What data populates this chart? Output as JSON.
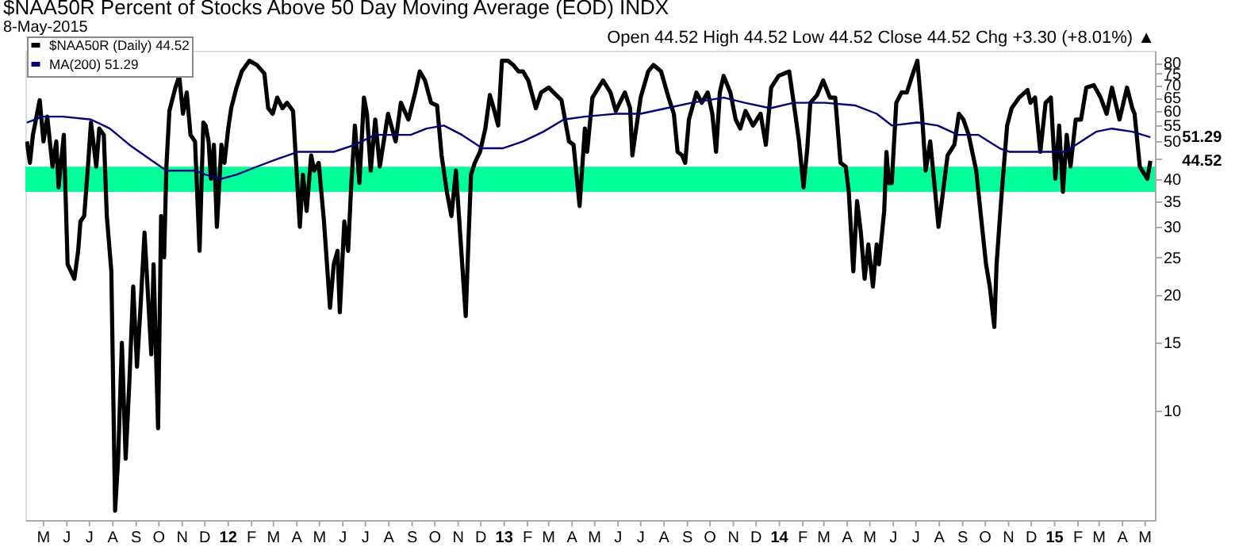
{
  "chart_data": {
    "type": "line",
    "title": "$NAA50R Percent of Stocks Above 50 Day Moving Average (EOD) INDX",
    "subtitle": "8-May-2015",
    "annotations": [
      "Open 44.52 High 44.52 Low 44.52 Close 44.52 Chg +3.30 (+8.01%) ▲",
      {
        "text": "51.29",
        "x": "2015-05-08",
        "y": 51.29
      },
      {
        "text": "44.52",
        "x": "2015-05-08",
        "y": 44.52
      }
    ],
    "log": true,
    "grid": false,
    "legend": "top left",
    "marker": "none",
    "line_style": "solid",
    "xlim": [
      "2011-04-07",
      "2015-05-14"
    ],
    "ylim": [
      5.2,
      86
    ],
    "yticks": [
      10,
      15,
      20,
      25,
      30,
      35,
      40,
      {
        "value": 45,
        "label": null
      },
      50,
      55,
      60,
      65,
      70,
      75,
      80
    ],
    "xticks": [
      {
        "value": "2011-05-01",
        "label": "M"
      },
      {
        "value": "2011-06-01",
        "label": "J"
      },
      {
        "value": "2011-07-01",
        "label": "J"
      },
      {
        "value": "2011-08-01",
        "label": "A"
      },
      {
        "value": "2011-09-01",
        "label": "S"
      },
      {
        "value": "2011-10-01",
        "label": "O"
      },
      {
        "value": "2011-11-01",
        "label": "N"
      },
      {
        "value": "2011-12-01",
        "label": "D"
      },
      {
        "value": "2012-01-01",
        "label": "12"
      },
      {
        "value": "2012-02-01",
        "label": "F"
      },
      {
        "value": "2012-03-01",
        "label": "M"
      },
      {
        "value": "2012-04-01",
        "label": "A"
      },
      {
        "value": "2012-05-01",
        "label": "M"
      },
      {
        "value": "2012-06-01",
        "label": "J"
      },
      {
        "value": "2012-07-01",
        "label": "J"
      },
      {
        "value": "2012-08-01",
        "label": "A"
      },
      {
        "value": "2012-09-01",
        "label": "S"
      },
      {
        "value": "2012-10-01",
        "label": "O"
      },
      {
        "value": "2012-11-01",
        "label": "N"
      },
      {
        "value": "2012-12-01",
        "label": "D"
      },
      {
        "value": "2013-01-01",
        "label": "13"
      },
      {
        "value": "2013-02-01",
        "label": "F"
      },
      {
        "value": "2013-03-01",
        "label": "M"
      },
      {
        "value": "2013-04-01",
        "label": "A"
      },
      {
        "value": "2013-05-01",
        "label": "M"
      },
      {
        "value": "2013-06-01",
        "label": "J"
      },
      {
        "value": "2013-07-01",
        "label": "J"
      },
      {
        "value": "2013-08-01",
        "label": "A"
      },
      {
        "value": "2013-09-01",
        "label": "S"
      },
      {
        "value": "2013-10-01",
        "label": "O"
      },
      {
        "value": "2013-11-01",
        "label": "N"
      },
      {
        "value": "2013-12-01",
        "label": "D"
      },
      {
        "value": "2014-01-01",
        "label": "14"
      },
      {
        "value": "2014-02-01",
        "label": "F"
      },
      {
        "value": "2014-03-01",
        "label": "M"
      },
      {
        "value": "2014-04-01",
        "label": "A"
      },
      {
        "value": "2014-05-01",
        "label": "M"
      },
      {
        "value": "2014-06-01",
        "label": "J"
      },
      {
        "value": "2014-07-01",
        "label": "J"
      },
      {
        "value": "2014-08-01",
        "label": "A"
      },
      {
        "value": "2014-09-01",
        "label": "S"
      },
      {
        "value": "2014-10-01",
        "label": "O"
      },
      {
        "value": "2014-11-01",
        "label": "N"
      },
      {
        "value": "2014-12-01",
        "label": "D"
      },
      {
        "value": "2015-01-01",
        "label": "15"
      },
      {
        "value": "2015-02-01",
        "label": "F"
      },
      {
        "value": "2015-03-01",
        "label": "M"
      },
      {
        "value": "2015-04-01",
        "label": "A"
      },
      {
        "value": "2015-05-01",
        "label": "M"
      }
    ],
    "bands": [
      {
        "axis": "y",
        "from": 37,
        "to": 43,
        "color": "#00ff99"
      }
    ],
    "series": [
      {
        "name": "$NAA50R (Daily) 44.52",
        "color": "#000000",
        "x": [
          "2011-04-09",
          "2011-04-13",
          "2011-04-17",
          "2011-04-26",
          "2011-05-01",
          "2011-05-06",
          "2011-05-13",
          "2011-05-18",
          "2011-05-21",
          "2011-05-28",
          "2011-06-02",
          "2011-06-11",
          "2011-06-16",
          "2011-06-19",
          "2011-06-24",
          "2011-06-29",
          "2011-07-03",
          "2011-07-10",
          "2011-07-14",
          "2011-07-20",
          "2011-07-24",
          "2011-07-30",
          "2011-08-04",
          "2011-08-08",
          "2011-08-13",
          "2011-08-18",
          "2011-08-23",
          "2011-08-28",
          "2011-09-02",
          "2011-09-07",
          "2011-09-12",
          "2011-09-21",
          "2011-09-24",
          "2011-09-30",
          "2011-10-04",
          "2011-10-08",
          "2011-10-11",
          "2011-10-15",
          "2011-10-23",
          "2011-10-28",
          "2011-11-02",
          "2011-11-07",
          "2011-11-12",
          "2011-11-18",
          "2011-11-24",
          "2011-11-29",
          "2011-12-02",
          "2011-12-06",
          "2011-12-09",
          "2011-12-13",
          "2011-12-17",
          "2011-12-23",
          "2011-12-27",
          "2012-01-01",
          "2012-01-05",
          "2012-01-12",
          "2012-01-19",
          "2012-01-29",
          "2012-02-08",
          "2012-02-18",
          "2012-02-23",
          "2012-02-29",
          "2012-03-06",
          "2012-03-13",
          "2012-03-19",
          "2012-03-27",
          "2012-04-05",
          "2012-04-09",
          "2012-04-14",
          "2012-04-20",
          "2012-04-24",
          "2012-04-30",
          "2012-05-07",
          "2012-05-15",
          "2012-05-20",
          "2012-05-25",
          "2012-05-28",
          "2012-06-03",
          "2012-06-08",
          "2012-06-12",
          "2012-06-17",
          "2012-06-23",
          "2012-06-29",
          "2012-07-03",
          "2012-07-08",
          "2012-07-14",
          "2012-07-20",
          "2012-07-31",
          "2012-08-10",
          "2012-08-17",
          "2012-08-27",
          "2012-09-05",
          "2012-09-11",
          "2012-09-18",
          "2012-09-26",
          "2012-10-04",
          "2012-10-10",
          "2012-10-17",
          "2012-10-23",
          "2012-10-29",
          "2012-11-04",
          "2012-11-11",
          "2012-11-15",
          "2012-11-18",
          "2012-11-23",
          "2012-11-30",
          "2012-12-07",
          "2012-12-13",
          "2012-12-18",
          "2012-12-24",
          "2012-12-29",
          "2013-01-06",
          "2013-01-13",
          "2013-01-20",
          "2013-01-26",
          "2013-02-02",
          "2013-02-12",
          "2013-02-19",
          "2013-03-01",
          "2013-03-11",
          "2013-03-18",
          "2013-03-28",
          "2013-04-03",
          "2013-04-11",
          "2013-04-18",
          "2013-04-21",
          "2013-04-28",
          "2013-05-12",
          "2013-05-22",
          "2013-05-29",
          "2013-06-10",
          "2013-06-17",
          "2013-06-20",
          "2013-06-25",
          "2013-07-01",
          "2013-07-11",
          "2013-07-18",
          "2013-07-28",
          "2013-08-07",
          "2013-08-14",
          "2013-08-19",
          "2013-08-25",
          "2013-08-29",
          "2013-09-03",
          "2013-09-13",
          "2013-09-20",
          "2013-09-28",
          "2013-10-04",
          "2013-10-09",
          "2013-10-14",
          "2013-10-19",
          "2013-10-28",
          "2013-11-04",
          "2013-11-10",
          "2013-11-17",
          "2013-11-27",
          "2013-12-07",
          "2013-12-14",
          "2013-12-21",
          "2013-12-31",
          "2014-01-14",
          "2014-01-22",
          "2014-01-27",
          "2014-02-02",
          "2014-02-07",
          "2014-02-11",
          "2014-02-20",
          "2014-02-28",
          "2014-03-09",
          "2014-03-16",
          "2014-03-23",
          "2014-03-30",
          "2014-04-03",
          "2014-04-09",
          "2014-04-14",
          "2014-04-19",
          "2014-04-24",
          "2014-04-29",
          "2014-05-05",
          "2014-05-10",
          "2014-05-13",
          "2014-05-20",
          "2014-05-23",
          "2014-05-26",
          "2014-05-30",
          "2014-06-05",
          "2014-06-12",
          "2014-06-19",
          "2014-06-26",
          "2014-07-03",
          "2014-07-09",
          "2014-07-14",
          "2014-07-20",
          "2014-07-26",
          "2014-07-31",
          "2014-08-06",
          "2014-08-12",
          "2014-08-21",
          "2014-08-27",
          "2014-09-02",
          "2014-09-09",
          "2014-09-19",
          "2014-09-26",
          "2014-10-02",
          "2014-10-07",
          "2014-10-13",
          "2014-10-16",
          "2014-10-22",
          "2014-10-30",
          "2014-11-05",
          "2014-11-15",
          "2014-11-26",
          "2014-11-30",
          "2014-12-06",
          "2014-12-13",
          "2014-12-20",
          "2014-12-27",
          "2015-01-02",
          "2015-01-07",
          "2015-01-12",
          "2015-01-17",
          "2015-01-22",
          "2015-01-29",
          "2015-02-05",
          "2015-02-12",
          "2015-02-22",
          "2015-03-03",
          "2015-03-11",
          "2015-03-18",
          "2015-03-28",
          "2015-04-07",
          "2015-04-14",
          "2015-04-17",
          "2015-04-24",
          "2015-05-04",
          "2015-05-08"
        ],
        "values": [
          50,
          44,
          52,
          64,
          50,
          58,
          43,
          50,
          38,
          52,
          24,
          22,
          26,
          31,
          32,
          43,
          56,
          43,
          54,
          52,
          32,
          23,
          5.5,
          7.5,
          15,
          7.5,
          12,
          21,
          13,
          19,
          29,
          14,
          24,
          9,
          32,
          25,
          43,
          60,
          69,
          74,
          59,
          67,
          52,
          50,
          26,
          56,
          55,
          50,
          40,
          49,
          30,
          49,
          44,
          54,
          61,
          69,
          76,
          81,
          79,
          75,
          61,
          59,
          65,
          61,
          63,
          60,
          30,
          41,
          33,
          46,
          42,
          44,
          31,
          18.5,
          24,
          26,
          18,
          31,
          26,
          38,
          55,
          39,
          65,
          59,
          42,
          57,
          43,
          59,
          50,
          63,
          57,
          67,
          76,
          72,
          63,
          62,
          46,
          37,
          32,
          42,
          28,
          17.6,
          29,
          41,
          44,
          47,
          54,
          66,
          61,
          55,
          81,
          81,
          79,
          76,
          76,
          72,
          61,
          67,
          69,
          66,
          64,
          50,
          49,
          34,
          54,
          47,
          65,
          72,
          67,
          60,
          67,
          61,
          46,
          54,
          65,
          76,
          79,
          76,
          65,
          59,
          47,
          46,
          44,
          57,
          67,
          63,
          67,
          59,
          47,
          67,
          74,
          67,
          57,
          54,
          60,
          55,
          59,
          49,
          69,
          74,
          76,
          59,
          50,
          38,
          48,
          63,
          66,
          72,
          65,
          65,
          44,
          43,
          37,
          23,
          35,
          29,
          22,
          27,
          21,
          27,
          24,
          33,
          47,
          39,
          39,
          63,
          67,
          67,
          74,
          81,
          59,
          42,
          50,
          38,
          30,
          37,
          46,
          49,
          59,
          57,
          52,
          42,
          31,
          24,
          21,
          16.5,
          24,
          35,
          55,
          61,
          65,
          68,
          63,
          65,
          47,
          63,
          65,
          40,
          55,
          37,
          52,
          43,
          57,
          57,
          69,
          70,
          65,
          59,
          69,
          57,
          69,
          61,
          59,
          43,
          40,
          44.52
        ]
      },
      {
        "name": "MA(200) 51.29",
        "color": "#000080",
        "x": [
          "2011-04-09",
          "2011-04-30",
          "2011-05-27",
          "2011-07-03",
          "2011-07-28",
          "2011-08-23",
          "2011-09-19",
          "2011-10-11",
          "2011-10-31",
          "2011-11-18",
          "2011-12-02",
          "2011-12-23",
          "2012-01-12",
          "2012-02-08",
          "2012-03-06",
          "2012-04-03",
          "2012-04-30",
          "2012-05-20",
          "2012-06-17",
          "2012-07-14",
          "2012-08-03",
          "2012-08-30",
          "2012-09-20",
          "2012-10-13",
          "2012-11-06",
          "2012-12-03",
          "2012-12-30",
          "2013-01-26",
          "2013-02-22",
          "2013-03-21",
          "2013-04-18",
          "2013-05-29",
          "2013-07-01",
          "2013-08-04",
          "2013-09-07",
          "2013-10-19",
          "2013-11-16",
          "2013-12-20",
          "2014-01-20",
          "2014-03-02",
          "2014-04-12",
          "2014-05-10",
          "2014-05-30",
          "2014-07-03",
          "2014-07-30",
          "2014-08-26",
          "2014-09-22",
          "2014-10-20",
          "2014-11-02",
          "2014-11-22",
          "2014-12-27",
          "2015-01-15",
          "2015-02-05",
          "2015-02-25",
          "2015-03-18",
          "2015-04-14",
          "2015-05-08"
        ],
        "values": [
          56,
          58,
          58,
          57,
          54,
          49,
          45,
          42,
          42,
          42,
          41,
          40,
          41,
          43,
          45,
          47,
          47,
          47,
          49,
          52,
          52,
          52,
          54,
          55,
          52,
          48,
          48,
          50,
          53,
          57,
          58,
          59,
          59,
          61,
          63,
          65,
          63,
          61,
          63,
          63,
          62,
          59,
          55,
          56,
          55,
          52,
          52,
          48,
          47,
          47,
          47,
          47,
          50,
          53,
          54,
          53,
          51.29
        ]
      }
    ]
  }
}
